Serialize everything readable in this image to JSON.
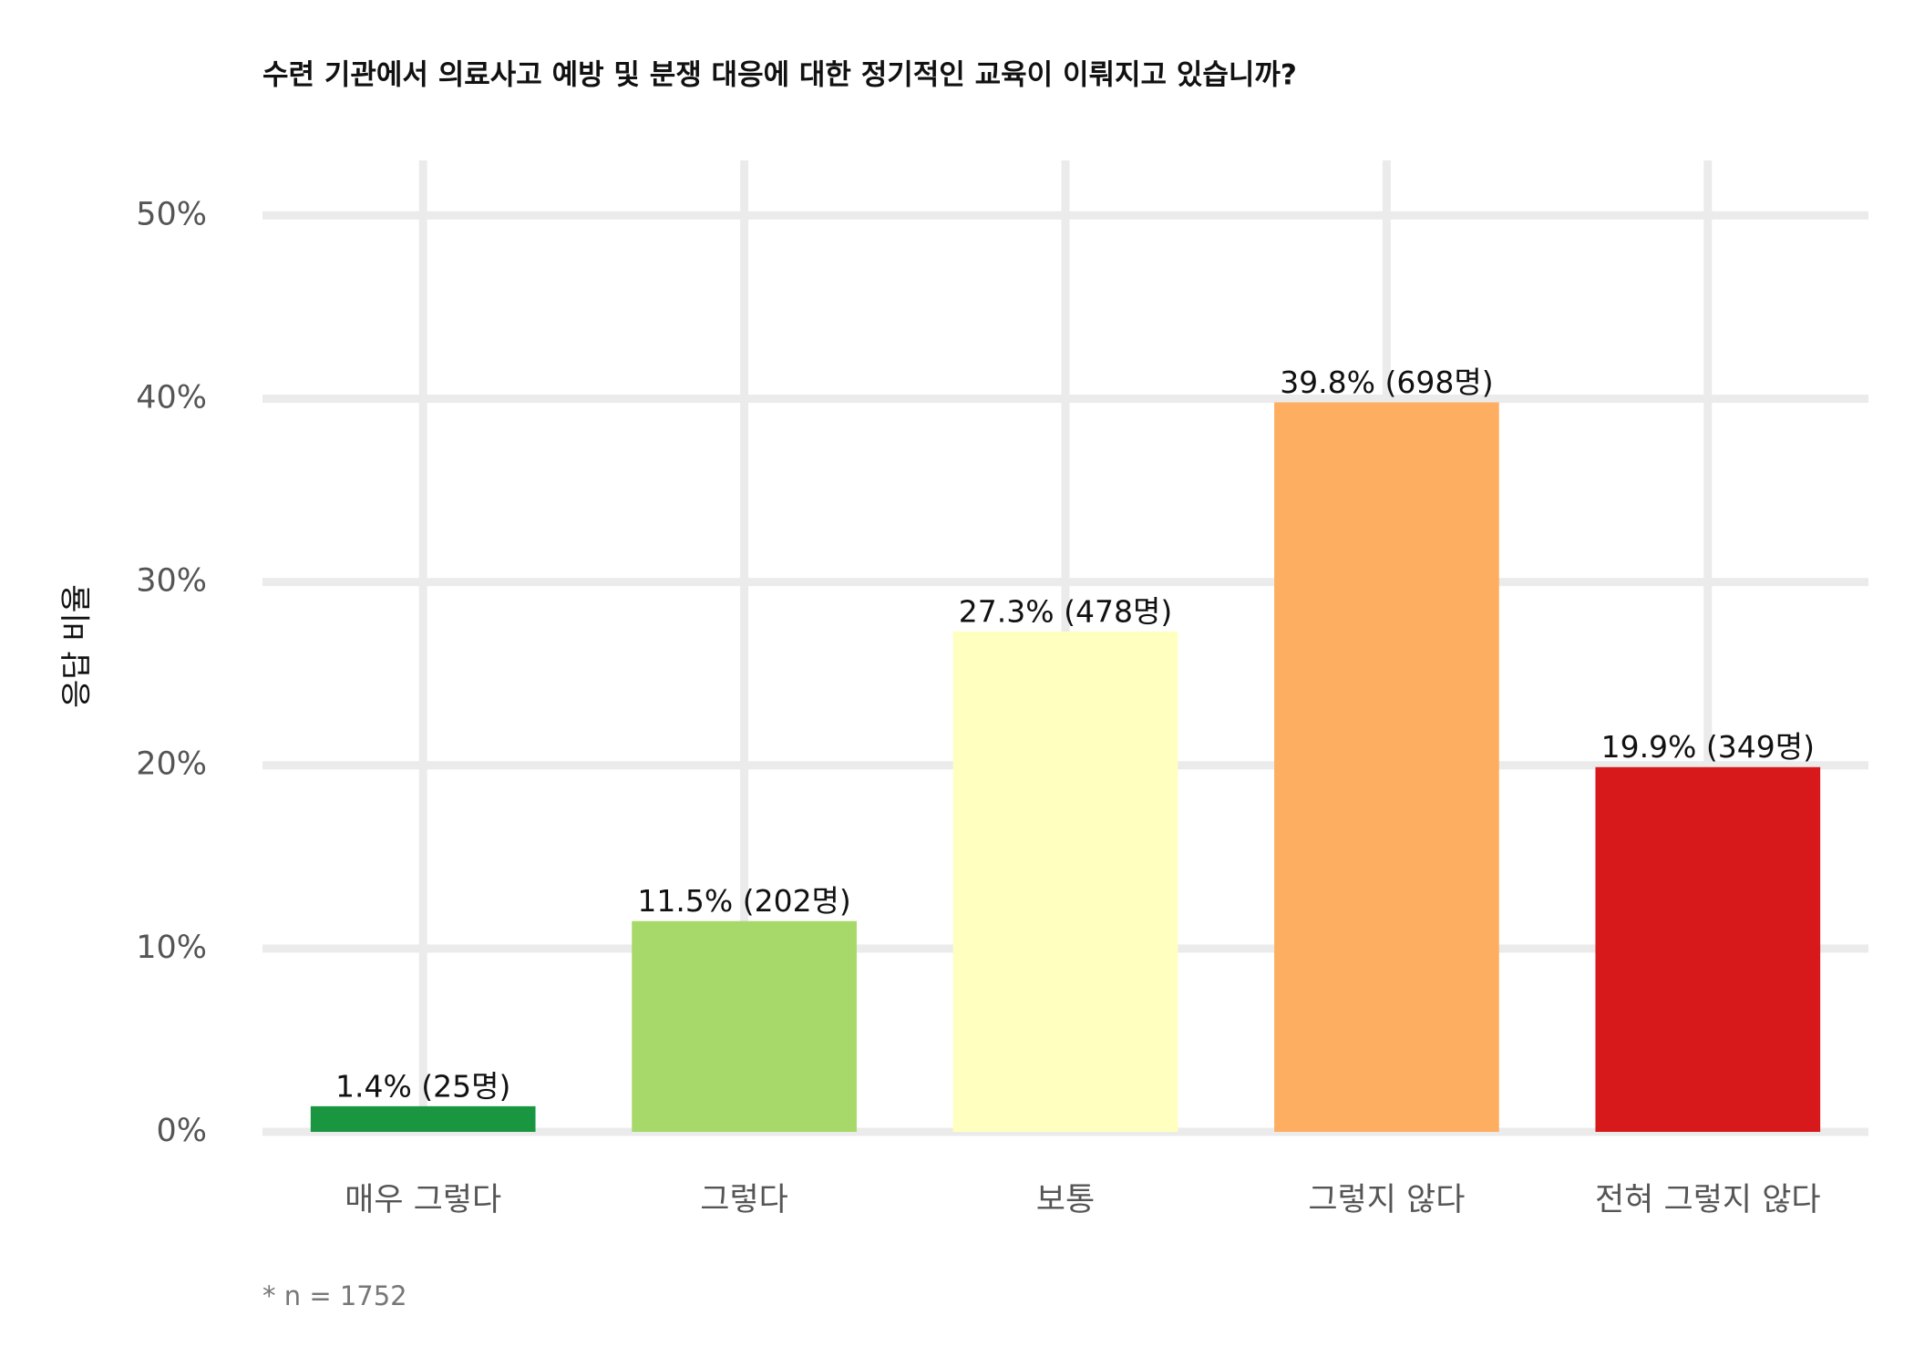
{
  "chart_data": {
    "type": "bar",
    "title": "수련 기관에서 의료사고 예방 및 분쟁 대응에 대한 정기적인 교육이 이뤄지고 있습니까?",
    "y_label": "응답 비율",
    "caption": "* n = 1752",
    "categories": [
      "매우 그렇다",
      "그렇다",
      "보통",
      "그렇지 않다",
      "전혀 그렇지 않다"
    ],
    "values": [
      1.4,
      11.5,
      27.3,
      39.8,
      19.9
    ],
    "value_labels": [
      "1.4% (25명)",
      "11.5% (202명)",
      "27.3% (478명)",
      "39.8% (698명)",
      "19.9% (349명)"
    ],
    "colors": [
      "#1a9641",
      "#a6d96a",
      "#ffffbf",
      "#fdae61",
      "#d7191c"
    ],
    "ylim": [
      0,
      53
    ],
    "yticks": [
      {
        "value": 0,
        "label": "0%"
      },
      {
        "value": 10,
        "label": "10%"
      },
      {
        "value": 20,
        "label": "20%"
      },
      {
        "value": 30,
        "label": "30%"
      },
      {
        "value": 40,
        "label": "40%"
      },
      {
        "value": 50,
        "label": "50%"
      }
    ],
    "grid": true
  }
}
